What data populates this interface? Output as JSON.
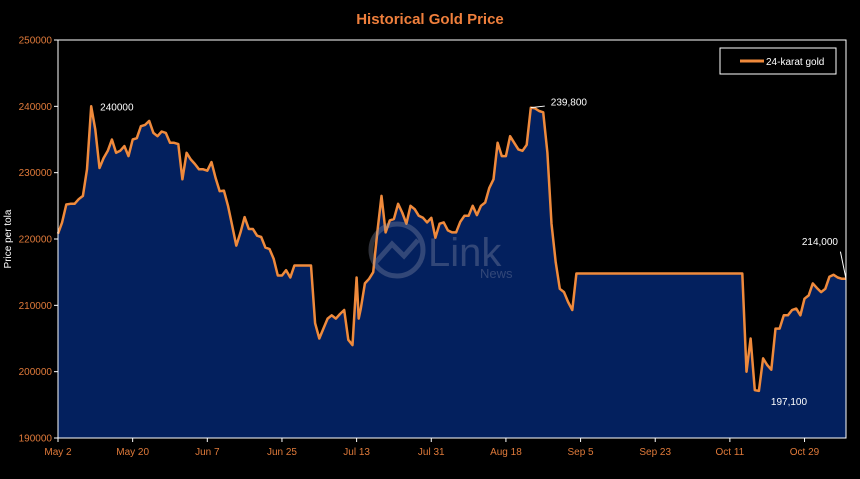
{
  "colors": {
    "background": "#000000",
    "plot_fill": "#03205e",
    "line": "#ef8a3c",
    "axis_text": "#e07a3a",
    "title": "#ef7f3c",
    "annotation": "#ffffff",
    "grid_frame": "#ffffff"
  },
  "chart_data": {
    "type": "area",
    "title": "Historical Gold Price",
    "xlabel": "",
    "ylabel": "Price per tola",
    "ylim": [
      190000,
      250000
    ],
    "yticks": [
      "190000",
      "200000",
      "210000",
      "220000",
      "230000",
      "240000",
      "250000"
    ],
    "xticks": [
      "May 2",
      "May 20",
      "Jun 7",
      "Jun 25",
      "Jul 13",
      "Jul 31",
      "Aug 18",
      "Sep 5",
      "Sep 23",
      "Oct 11",
      "Oct 29"
    ],
    "xlim_days": [
      0,
      190
    ],
    "legend": {
      "position": "top-right",
      "entries": [
        "24-karat gold"
      ]
    },
    "series": [
      {
        "name": "24-karat gold",
        "points": [
          [
            0,
            220800
          ],
          [
            1,
            222500
          ],
          [
            2,
            225200
          ],
          [
            3,
            225300
          ],
          [
            4,
            225300
          ],
          [
            5,
            226000
          ],
          [
            6,
            226500
          ],
          [
            7,
            230500
          ],
          [
            8,
            240000
          ],
          [
            9,
            236500
          ],
          [
            10,
            230700
          ],
          [
            11,
            232200
          ],
          [
            12,
            233300
          ],
          [
            13,
            235000
          ],
          [
            14,
            233000
          ],
          [
            15,
            233300
          ],
          [
            16,
            234000
          ],
          [
            17,
            232500
          ],
          [
            18,
            235000
          ],
          [
            19,
            235200
          ],
          [
            20,
            237000
          ],
          [
            21,
            237200
          ],
          [
            22,
            237800
          ],
          [
            23,
            236000
          ],
          [
            24,
            235500
          ],
          [
            25,
            236200
          ],
          [
            26,
            236000
          ],
          [
            27,
            234500
          ],
          [
            28,
            234500
          ],
          [
            29,
            234300
          ],
          [
            30,
            229000
          ],
          [
            31,
            233000
          ],
          [
            32,
            232000
          ],
          [
            33,
            231300
          ],
          [
            34,
            230500
          ],
          [
            35,
            230500
          ],
          [
            36,
            230300
          ],
          [
            37,
            231600
          ],
          [
            38,
            229200
          ],
          [
            39,
            227200
          ],
          [
            40,
            227300
          ],
          [
            41,
            225000
          ],
          [
            42,
            222000
          ],
          [
            43,
            219000
          ],
          [
            44,
            221000
          ],
          [
            45,
            223300
          ],
          [
            46,
            221500
          ],
          [
            47,
            221500
          ],
          [
            48,
            220500
          ],
          [
            49,
            220300
          ],
          [
            50,
            218700
          ],
          [
            51,
            218500
          ],
          [
            52,
            217000
          ],
          [
            53,
            214500
          ],
          [
            54,
            214500
          ],
          [
            55,
            215300
          ],
          [
            56,
            214200
          ],
          [
            57,
            216000
          ],
          [
            58,
            216000
          ],
          [
            59,
            216000
          ],
          [
            60,
            216000
          ],
          [
            61,
            216000
          ],
          [
            62,
            207300
          ],
          [
            63,
            205000
          ],
          [
            64,
            206500
          ],
          [
            65,
            208000
          ],
          [
            66,
            208500
          ],
          [
            67,
            208000
          ],
          [
            68,
            208700
          ],
          [
            69,
            209300
          ],
          [
            70,
            204800
          ],
          [
            71,
            204000
          ],
          [
            72,
            214200
          ],
          [
            72.5,
            208000
          ],
          [
            73,
            209500
          ],
          [
            74,
            213300
          ],
          [
            75,
            214000
          ],
          [
            76,
            215000
          ],
          [
            77,
            221000
          ],
          [
            78,
            226500
          ],
          [
            79,
            221000
          ],
          [
            80,
            222800
          ],
          [
            81,
            223000
          ],
          [
            82,
            225300
          ],
          [
            83,
            224000
          ],
          [
            84,
            222300
          ],
          [
            85,
            225000
          ],
          [
            86,
            224500
          ],
          [
            87,
            223500
          ],
          [
            88,
            223200
          ],
          [
            89,
            222500
          ],
          [
            90,
            223200
          ],
          [
            91,
            220200
          ],
          [
            92,
            222300
          ],
          [
            93,
            222500
          ],
          [
            94,
            221300
          ],
          [
            95,
            221000
          ],
          [
            96,
            221000
          ],
          [
            97,
            222600
          ],
          [
            98,
            223500
          ],
          [
            99,
            223500
          ],
          [
            100,
            225000
          ],
          [
            101,
            223600
          ],
          [
            102,
            225000
          ],
          [
            103,
            225500
          ],
          [
            104,
            227700
          ],
          [
            105,
            229000
          ],
          [
            106,
            234500
          ],
          [
            107,
            232500
          ],
          [
            108,
            232500
          ],
          [
            109,
            235500
          ],
          [
            110,
            234500
          ],
          [
            111,
            233500
          ],
          [
            112,
            233300
          ],
          [
            113,
            234200
          ],
          [
            114,
            239800
          ],
          [
            115,
            239700
          ],
          [
            116,
            239300
          ],
          [
            117,
            239100
          ],
          [
            118,
            233000
          ],
          [
            119,
            222300
          ],
          [
            120,
            216500
          ],
          [
            121,
            212500
          ],
          [
            122,
            212000
          ],
          [
            123,
            210500
          ],
          [
            124,
            209300
          ],
          [
            125,
            214800
          ],
          [
            126,
            214800
          ],
          [
            130,
            214800
          ],
          [
            140,
            214800
          ],
          [
            150,
            214800
          ],
          [
            160,
            214800
          ],
          [
            165,
            214800
          ],
          [
            166,
            200000
          ],
          [
            167,
            205000
          ],
          [
            168,
            197200
          ],
          [
            169,
            197100
          ],
          [
            170,
            202000
          ],
          [
            171,
            201000
          ],
          [
            172,
            200300
          ],
          [
            173,
            206500
          ],
          [
            174,
            206500
          ],
          [
            175,
            208500
          ],
          [
            176,
            208500
          ],
          [
            177,
            209300
          ],
          [
            178,
            209500
          ],
          [
            179,
            208500
          ],
          [
            180,
            211000
          ],
          [
            181,
            211500
          ],
          [
            182,
            213300
          ],
          [
            183,
            212600
          ],
          [
            184,
            212000
          ],
          [
            185,
            212500
          ],
          [
            186,
            214300
          ],
          [
            187,
            214600
          ],
          [
            188,
            214200
          ],
          [
            189,
            214000
          ],
          [
            190,
            214000
          ]
        ]
      }
    ],
    "annotations": [
      {
        "x": 8,
        "y": 240000,
        "text": "240000"
      },
      {
        "x": 114,
        "y": 239800,
        "text": "239,800"
      },
      {
        "x": 169,
        "y": 197100,
        "text": "197,100"
      },
      {
        "x": 190,
        "y": 214000,
        "text": "214,000"
      }
    ]
  },
  "watermark": {
    "brand": "Link",
    "sub": "News"
  }
}
